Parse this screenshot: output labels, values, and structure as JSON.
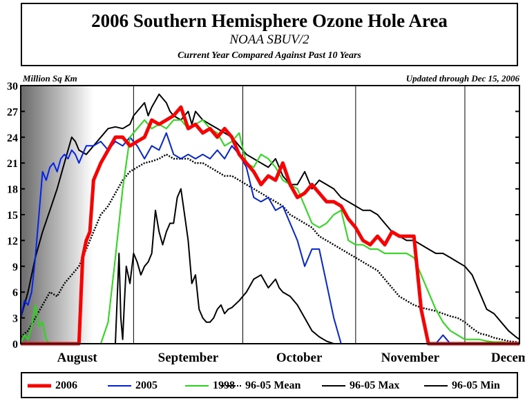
{
  "header": {
    "title": "2006 Southern Hemisphere Ozone Hole Area",
    "subtitle": "NOAA SBUV/2",
    "caption": "Current Year Compared Against Past 10 Years"
  },
  "ylabel_text": "Million Sq Km",
  "updated_text": "Updated through Dec 15, 2006",
  "chart_data": {
    "type": "line",
    "title": "2006 Southern Hemisphere Ozone Hole Area",
    "ylabel": "Million Sq Km",
    "xlabel": "",
    "xlim": [
      0,
      137
    ],
    "ylim": [
      0,
      30
    ],
    "yticks": [
      0,
      3,
      6,
      9,
      12,
      15,
      18,
      21,
      24,
      27,
      30
    ],
    "month_labels": [
      "August",
      "September",
      "October",
      "November",
      "December"
    ],
    "month_positions": [
      0,
      31,
      61,
      92,
      122
    ],
    "x_units": "days since Aug 1",
    "grid": "vertical month lines",
    "legend_position": "bottom",
    "series": [
      {
        "name": "96-05 Max",
        "color": "#000000",
        "style": "solid",
        "x": [
          0,
          2,
          4,
          6,
          8,
          10,
          12,
          14,
          15,
          16,
          18,
          20,
          22,
          24,
          26,
          28,
          30,
          31,
          32,
          34,
          35,
          36,
          38,
          40,
          41,
          42,
          44,
          46,
          47,
          48,
          50,
          52,
          54,
          56,
          58,
          60,
          62,
          64,
          66,
          68,
          70,
          72,
          74,
          76,
          78,
          80,
          82,
          84,
          86,
          88,
          90,
          92,
          94,
          96,
          98,
          100,
          102,
          104,
          106,
          108,
          110,
          112,
          114,
          116,
          118,
          120,
          122,
          124,
          126,
          128,
          130,
          132,
          134,
          136,
          137
        ],
        "y": [
          3,
          6,
          10,
          13,
          15.5,
          18,
          21,
          24,
          23.5,
          22.5,
          22,
          23,
          24,
          25,
          25.2,
          25,
          25.5,
          26.5,
          27,
          28,
          26.5,
          27.5,
          29,
          28,
          27,
          26.5,
          26,
          27,
          25.5,
          27,
          26,
          25.5,
          25,
          24.5,
          24,
          23,
          22,
          21.5,
          21,
          20.5,
          21.5,
          19.5,
          18.5,
          18.5,
          20,
          18,
          19,
          18.5,
          18,
          17,
          16.5,
          16,
          15.5,
          15.5,
          15,
          14,
          13,
          12.5,
          12,
          12,
          11.5,
          11,
          10.5,
          10.5,
          10,
          9.5,
          9,
          8,
          6,
          4,
          3.5,
          2.5,
          1.5,
          0.8,
          0.5
        ]
      },
      {
        "name": "96-05 Min",
        "color": "#000000",
        "style": "solid",
        "x": [
          26,
          27,
          27.5,
          28,
          28.5,
          29,
          30,
          31,
          32,
          33,
          34,
          35,
          36,
          37,
          38,
          39,
          40,
          41,
          42,
          43,
          44,
          45,
          46,
          47,
          48,
          49,
          50,
          51,
          52,
          53,
          54,
          55,
          56,
          57,
          58,
          60,
          62,
          64,
          66,
          68,
          70,
          71,
          72,
          74,
          76,
          78,
          80,
          82,
          84,
          86,
          88,
          90,
          92
        ],
        "y": [
          0,
          10.5,
          3,
          0.5,
          5,
          9,
          7,
          10.5,
          9.5,
          8,
          9,
          9.5,
          10.5,
          15.5,
          13,
          11.5,
          13,
          14,
          14,
          17,
          18,
          15,
          12,
          7,
          8,
          4,
          3,
          2.5,
          2.5,
          3,
          4,
          4.5,
          3.5,
          4,
          4.2,
          5,
          6,
          7.5,
          8,
          6.5,
          7.5,
          6.5,
          6,
          5.5,
          4.5,
          3,
          1.5,
          0.8,
          0.3,
          0,
          0,
          0,
          0
        ]
      },
      {
        "name": "96-05 Mean",
        "color": "#000000",
        "style": "dotted",
        "x": [
          0,
          2,
          4,
          6,
          8,
          10,
          12,
          14,
          16,
          18,
          20,
          22,
          24,
          26,
          28,
          30,
          32,
          34,
          36,
          38,
          40,
          42,
          44,
          46,
          48,
          50,
          52,
          54,
          56,
          58,
          60,
          62,
          64,
          66,
          68,
          70,
          72,
          74,
          76,
          78,
          80,
          82,
          84,
          86,
          88,
          90,
          92,
          94,
          96,
          98,
          100,
          102,
          104,
          106,
          108,
          110,
          112,
          114,
          116,
          118,
          120,
          122,
          124,
          126,
          128,
          130,
          132,
          134,
          136,
          137
        ],
        "y": [
          0.8,
          1.5,
          3,
          4.5,
          6,
          5.5,
          7,
          8,
          9,
          11,
          13,
          15,
          16,
          17.5,
          19,
          20,
          20.5,
          21,
          21.2,
          21.5,
          22,
          21.5,
          21.5,
          21.5,
          21,
          21,
          20.5,
          20,
          19.5,
          19.5,
          19,
          18.5,
          18,
          17.5,
          17,
          16.5,
          16,
          15,
          14.5,
          14,
          13.5,
          12.5,
          12,
          11.5,
          11,
          10.5,
          10,
          9.5,
          9,
          8.5,
          7.5,
          6.5,
          5.5,
          5,
          4.5,
          4.2,
          4,
          3.8,
          3.5,
          3.2,
          3,
          2.5,
          1.8,
          1.2,
          1,
          0.7,
          0.5,
          0.3,
          0.2,
          0.1
        ]
      },
      {
        "name": "2005",
        "color": "#0022ee",
        "style": "solid",
        "x": [
          0,
          1,
          2,
          3,
          4,
          5,
          6,
          7,
          8,
          9,
          10,
          11,
          12,
          13,
          14,
          15,
          16,
          17,
          18,
          20,
          22,
          24,
          26,
          28,
          30,
          32,
          34,
          36,
          38,
          40,
          42,
          44,
          46,
          48,
          50,
          52,
          54,
          56,
          58,
          60,
          62,
          64,
          66,
          68,
          70,
          72,
          74,
          76,
          78,
          80,
          82,
          84,
          86,
          88,
          90,
          92,
          94,
          96,
          98,
          100,
          102,
          104,
          106,
          108,
          110,
          112,
          114,
          116,
          117,
          118,
          120,
          122,
          124,
          126
        ],
        "y": [
          3,
          5,
          4.5,
          6,
          10,
          15,
          20,
          19,
          20.5,
          21,
          20,
          21.5,
          22,
          21.5,
          22.5,
          22,
          21,
          22,
          23,
          23,
          23.5,
          22.5,
          23.5,
          23,
          24,
          23,
          21.5,
          23,
          22.5,
          24.5,
          22,
          21.5,
          22,
          21.5,
          22,
          21.5,
          22.5,
          21.5,
          23,
          22,
          20.5,
          17,
          16.5,
          17,
          15.5,
          16,
          14,
          12,
          9,
          11,
          11,
          7,
          3,
          0,
          0,
          0,
          0,
          0,
          0,
          0,
          0,
          0,
          0,
          0,
          0,
          0,
          0,
          1,
          0.5,
          0,
          0,
          0,
          0,
          0
        ]
      },
      {
        "name": "1998",
        "color": "#22dd11",
        "style": "solid",
        "x": [
          0,
          1,
          2,
          3,
          4,
          5,
          6,
          7,
          8,
          9,
          10,
          11,
          12,
          13,
          14,
          15,
          16,
          17,
          18,
          20,
          22,
          24,
          26,
          28,
          30,
          32,
          34,
          36,
          38,
          40,
          42,
          44,
          46,
          48,
          50,
          52,
          54,
          56,
          58,
          60,
          62,
          64,
          66,
          68,
          70,
          72,
          74,
          76,
          78,
          80,
          82,
          84,
          86,
          88,
          90,
          92,
          94,
          96,
          98,
          100,
          102,
          104,
          106,
          108,
          110,
          112,
          114,
          116,
          118,
          120,
          122,
          124,
          126,
          128,
          130,
          132,
          134,
          136,
          137
        ],
        "y": [
          0,
          1,
          0.5,
          2,
          4.5,
          2,
          2.5,
          0.5,
          0,
          0,
          0,
          0,
          0,
          0,
          0,
          0,
          0,
          0,
          0,
          0,
          0,
          2.5,
          10,
          18,
          24,
          25,
          26,
          25,
          25.5,
          25,
          26,
          26,
          25,
          25.5,
          26,
          25,
          24.5,
          23,
          23.5,
          24.5,
          21,
          20.5,
          22,
          21.5,
          20.5,
          19,
          18.5,
          18,
          16,
          14,
          13.5,
          14,
          15,
          15.5,
          12,
          11.5,
          11.5,
          11,
          11,
          10.5,
          10.5,
          10.5,
          10.5,
          10,
          8,
          6,
          4,
          2.5,
          1.5,
          1,
          0.5,
          0.5,
          0.5,
          0.3,
          0.2,
          0.2,
          0.1,
          0.1,
          0.1
        ]
      },
      {
        "name": "2006",
        "color": "#ff0000",
        "style": "solid",
        "x": [
          0,
          2,
          4,
          6,
          8,
          10,
          12,
          14,
          15,
          16,
          17,
          18,
          19,
          20,
          22,
          24,
          26,
          28,
          30,
          32,
          34,
          36,
          38,
          40,
          42,
          44,
          46,
          48,
          50,
          52,
          54,
          56,
          58,
          60,
          62,
          64,
          66,
          68,
          70,
          72,
          74,
          76,
          78,
          80,
          82,
          84,
          86,
          88,
          90,
          92,
          94,
          96,
          98,
          100,
          102,
          104,
          106,
          108,
          110,
          112,
          114,
          116,
          117,
          118,
          120,
          122,
          124,
          126,
          128,
          130,
          132,
          134,
          136,
          137
        ],
        "y": [
          0,
          0,
          0,
          0,
          0,
          0,
          0,
          0,
          0,
          0,
          10,
          12,
          13,
          19,
          21,
          22.5,
          24,
          24,
          23,
          23.5,
          24,
          26,
          25.5,
          26,
          26.5,
          27.5,
          25,
          25.5,
          24.5,
          25,
          24,
          25,
          24,
          22,
          21,
          20,
          18.5,
          19.5,
          19,
          21,
          18.5,
          17,
          17.5,
          18.5,
          17.5,
          16.5,
          16.5,
          16,
          14.5,
          13.5,
          12,
          11.5,
          12.5,
          11.5,
          13,
          12.5,
          12.5,
          12.5,
          4,
          0,
          0,
          0,
          0,
          0,
          0,
          0,
          0,
          0,
          0,
          0,
          0,
          0,
          0,
          0
        ]
      }
    ]
  },
  "legend": {
    "items": [
      {
        "label": "2006",
        "color": "#ff0000",
        "style": "thick"
      },
      {
        "label": "2005",
        "color": "#0022ee",
        "style": "solid"
      },
      {
        "label": "1998",
        "color": "#22dd11",
        "style": "solid"
      },
      {
        "label": "96-05 Mean",
        "color": "#000000",
        "style": "dotted"
      },
      {
        "label": "96-05 Max",
        "color": "#000000",
        "style": "solid"
      },
      {
        "label": "96-05 Min",
        "color": "#000000",
        "style": "solid"
      }
    ]
  },
  "colors": {
    "red": "#ff0000",
    "blue": "#0022ee",
    "green": "#22dd11",
    "black": "#000000"
  }
}
